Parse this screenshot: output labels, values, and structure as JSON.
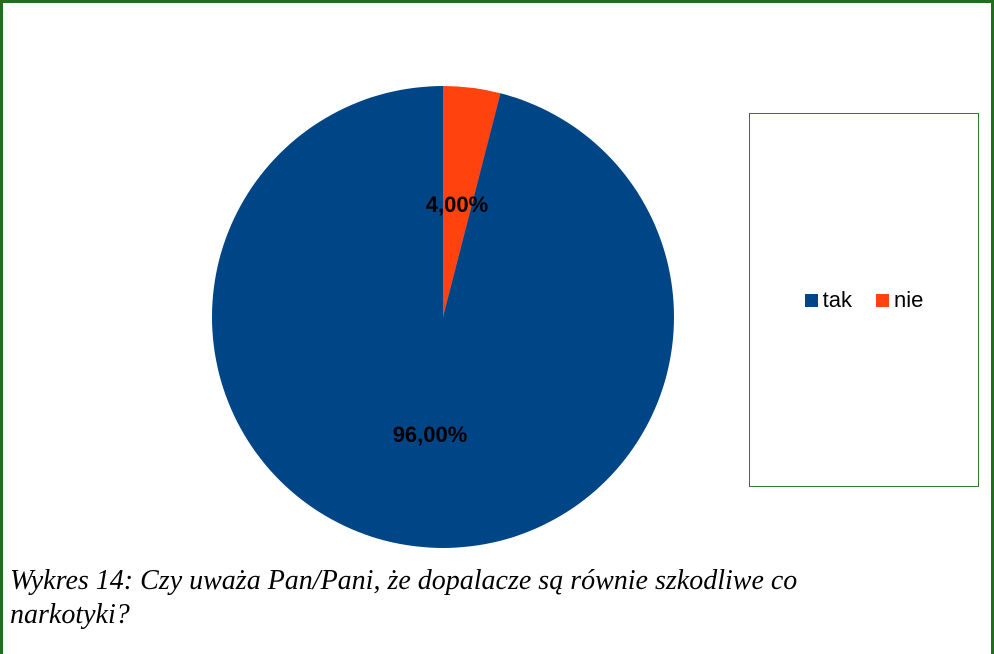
{
  "colors": {
    "frame": "#1f6f1f",
    "legend_border": "#2e7d32"
  },
  "chart_data": {
    "type": "pie",
    "title": "",
    "categories": [
      "tak",
      "nie"
    ],
    "values": [
      96.0,
      4.0
    ],
    "data_labels": [
      "96,00%",
      "4,00%"
    ],
    "colors": [
      "#004586",
      "#ff420e"
    ],
    "legend": {
      "position": "right",
      "entries": [
        "tak",
        "nie"
      ]
    }
  },
  "caption": {
    "text": "Wykres 14: Czy uważa Pan/Pani, że dopalacze są równie szkodliwe co narkotyki?"
  }
}
